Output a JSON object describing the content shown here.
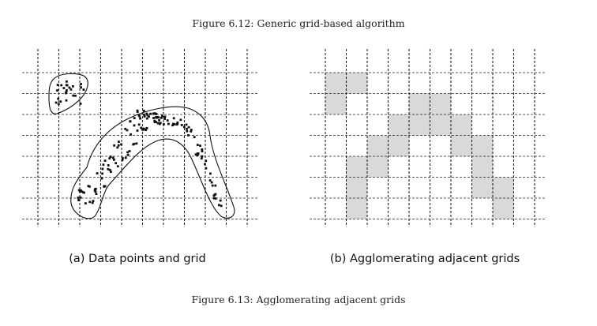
{
  "figure_top_caption": "Figure 6.12: Generic grid-based algorithm",
  "figure_bottom_caption": "Figure 6.13: Agglomerating adjacent grids",
  "panel_a": {
    "caption": "(a) Data points and grid"
  },
  "panel_b": {
    "caption": "(b) Agglomerating adjacent grids"
  },
  "colors": {
    "grid_line": "#222222",
    "point": "#111111",
    "cluster_outline": "#111111",
    "filled_cell": "#d9d9d9"
  },
  "grid": {
    "columns": 11,
    "rows": 8
  },
  "filled_cells": [
    [
      0,
      0
    ],
    [
      1,
      0
    ],
    [
      0,
      1
    ],
    [
      4,
      1
    ],
    [
      5,
      1
    ],
    [
      3,
      2
    ],
    [
      4,
      2
    ],
    [
      5,
      2
    ],
    [
      6,
      2
    ],
    [
      2,
      3
    ],
    [
      3,
      3
    ],
    [
      6,
      3
    ],
    [
      7,
      3
    ],
    [
      1,
      4
    ],
    [
      2,
      4
    ],
    [
      7,
      4
    ],
    [
      1,
      5
    ],
    [
      7,
      5
    ],
    [
      8,
      5
    ],
    [
      1,
      6
    ],
    [
      8,
      6
    ]
  ]
}
